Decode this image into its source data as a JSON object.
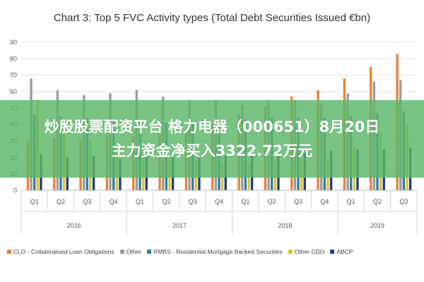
{
  "chart_data": {
    "type": "bar",
    "title": "Chart 3: Top 5 FVC Activity types (Total Debt Securities Issued €bn)",
    "xlabel": "",
    "ylabel": "",
    "ylim": [
      0,
      90
    ],
    "yticks": [
      "0",
      "10",
      "20",
      "30",
      "40",
      "50",
      "60",
      "70",
      "80",
      "90"
    ],
    "grid": true,
    "legend_position": "bottom",
    "categories": [
      "Q1",
      "Q2",
      "Q3",
      "Q4",
      "Q1",
      "Q2",
      "Q3",
      "Q4",
      "Q1",
      "Q2",
      "Q3",
      "Q4",
      "Q1",
      "Q2",
      "Q3"
    ],
    "years": [
      {
        "label": "2016",
        "quarters": 4
      },
      {
        "label": "2017",
        "quarters": 4
      },
      {
        "label": "2018",
        "quarters": 4
      },
      {
        "label": "2019",
        "quarters": 3
      }
    ],
    "series": [
      {
        "name": "CLO - Collateralised Loan Obligations",
        "color": "#e8833a",
        "values": [
          30,
          32,
          31,
          33,
          33,
          35,
          36,
          40,
          46,
          51,
          57,
          61,
          68,
          75,
          83
        ]
      },
      {
        "name": "Other",
        "color": "#9c9c9c",
        "values": [
          68,
          61,
          58,
          59,
          61,
          57,
          55,
          55,
          52,
          55,
          55,
          53,
          59,
          66,
          67
        ]
      },
      {
        "name": "RMBS - Residential Mortgage Backed Securities",
        "color": "#2e7fa8",
        "values": [
          46,
          45,
          44,
          43,
          42,
          41,
          41,
          42,
          43,
          44,
          44,
          44,
          45,
          47,
          48
        ]
      },
      {
        "name": "Other CDO",
        "color": "#e6c229",
        "values": [
          55,
          40,
          30,
          25,
          22,
          20,
          18,
          17,
          17,
          18,
          19,
          19,
          27,
          36,
          40
        ]
      },
      {
        "name": "ABCP",
        "color": "#1f3d8a",
        "values": [
          22,
          20,
          21,
          19,
          20,
          20,
          20,
          21,
          22,
          23,
          23,
          24,
          25,
          25,
          26
        ]
      }
    ]
  },
  "banner": {
    "line1": "炒股股票配资平台 格力电器（000651）8月20日",
    "line2": "主力资金净买入3322.72万元"
  }
}
